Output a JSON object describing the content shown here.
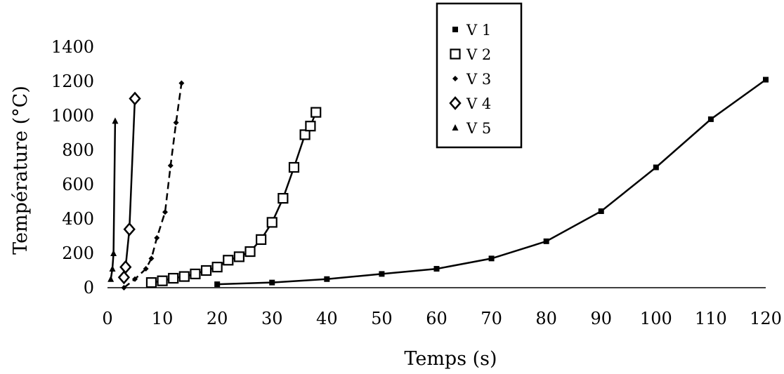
{
  "chart_data": {
    "type": "line",
    "xlabel": "Temps (s)",
    "ylabel": "Température (°C)",
    "xlim": [
      0,
      120
    ],
    "ylim": [
      0,
      1400
    ],
    "xticks": [
      0,
      10,
      20,
      30,
      40,
      50,
      60,
      70,
      80,
      90,
      100,
      110,
      120
    ],
    "yticks": [
      0,
      200,
      400,
      600,
      800,
      1000,
      1200,
      1400
    ],
    "grid": false,
    "legend_position": "top-center",
    "series": [
      {
        "name": "V 1",
        "marker": "filled-square",
        "x": [
          20,
          30,
          40,
          50,
          60,
          70,
          80,
          90,
          100,
          110,
          120
        ],
        "y": [
          20,
          30,
          50,
          80,
          110,
          170,
          270,
          445,
          700,
          980,
          1210
        ]
      },
      {
        "name": "V 2",
        "marker": "open-square",
        "x": [
          8,
          10,
          12,
          14,
          16,
          18,
          20,
          22,
          24,
          26,
          28,
          30,
          32,
          34,
          36,
          37,
          38
        ],
        "y": [
          30,
          40,
          55,
          65,
          80,
          100,
          120,
          160,
          180,
          210,
          280,
          380,
          520,
          700,
          890,
          940,
          1020
        ]
      },
      {
        "name": "V 3",
        "marker": "small-diamond",
        "x": [
          3,
          5,
          7,
          8,
          9,
          10.5,
          11.5,
          12.5,
          13.5
        ],
        "y": [
          0,
          50,
          110,
          170,
          290,
          440,
          710,
          960,
          1190
        ]
      },
      {
        "name": "V 4",
        "marker": "open-diamond",
        "x": [
          3,
          3.3,
          4,
          5
        ],
        "y": [
          60,
          120,
          340,
          1100
        ]
      },
      {
        "name": "V 5",
        "marker": "triangle",
        "x": [
          0.6,
          0.9,
          1.1,
          1.4
        ],
        "y": [
          50,
          110,
          200,
          970
        ]
      }
    ]
  }
}
